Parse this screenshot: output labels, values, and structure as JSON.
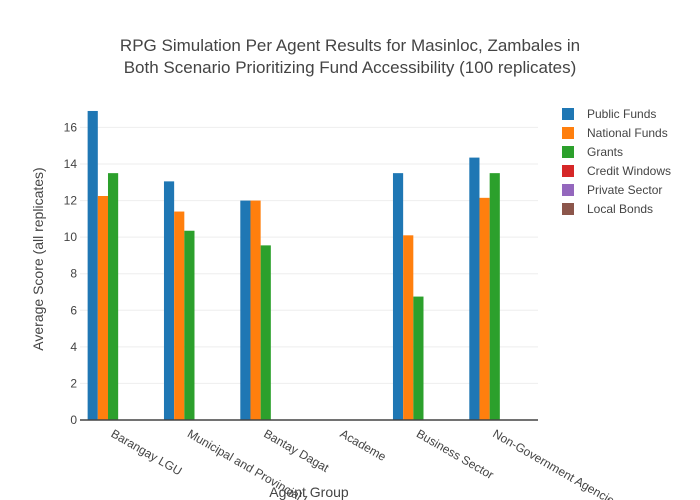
{
  "chart_data": {
    "type": "bar",
    "title_lines": [
      "RPG Simulation Per Agent Results for Masinloc, Zambales in",
      "Both Scenario Prioritizing Fund Accessibility (100 replicates)"
    ],
    "xlabel": "Agent Group",
    "ylabel": "Average Score (all replicates)",
    "ylim": [
      0,
      17.5
    ],
    "yticks": [
      0,
      2,
      4,
      6,
      8,
      10,
      12,
      14,
      16
    ],
    "grid": true,
    "legend_position": "top-right",
    "categories": [
      "Barangay LGU",
      "Municipal and Provincial LGU",
      "Bantay Dagat",
      "Academe",
      "Business Sector",
      "Non-Government Agencies"
    ],
    "series": [
      {
        "name": "Public Funds",
        "color": "#1f77b4",
        "values": [
          16.9,
          13.05,
          12.0,
          0,
          13.5,
          14.35
        ]
      },
      {
        "name": "National Funds",
        "color": "#ff7f0e",
        "values": [
          12.25,
          11.4,
          12.0,
          0,
          10.1,
          12.15
        ]
      },
      {
        "name": "Grants",
        "color": "#2ca02c",
        "values": [
          13.5,
          10.35,
          9.55,
          0,
          6.75,
          13.5
        ]
      },
      {
        "name": "Credit Windows",
        "color": "#d62728",
        "values": [
          0,
          0,
          0,
          0,
          0,
          0
        ]
      },
      {
        "name": "Private Sector",
        "color": "#9467bd",
        "values": [
          0,
          0,
          0,
          0,
          0,
          0
        ]
      },
      {
        "name": "Local Bonds",
        "color": "#8c564b",
        "values": [
          0,
          0,
          0,
          0,
          0,
          0
        ]
      }
    ]
  }
}
